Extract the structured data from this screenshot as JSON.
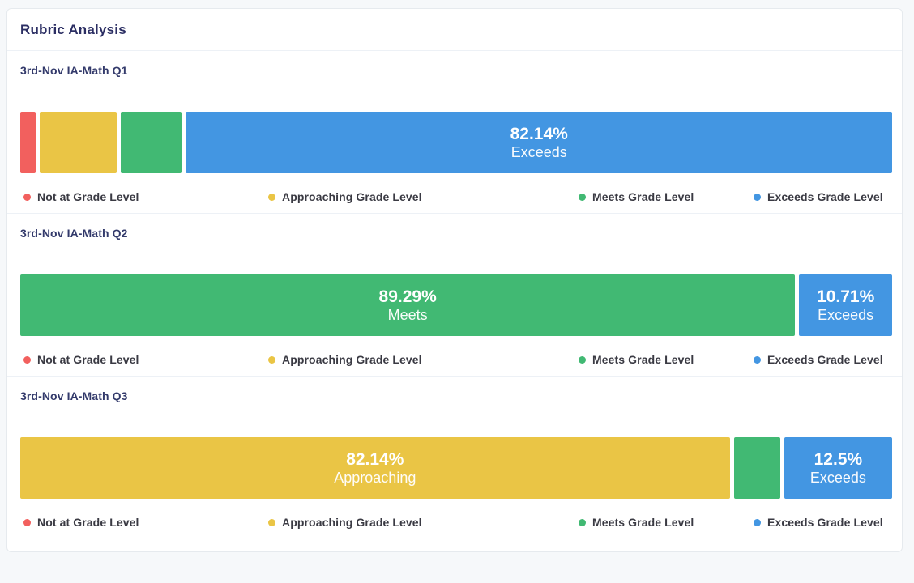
{
  "panel": {
    "title": "Rubric Analysis"
  },
  "colors": {
    "not_at_grade_level": "#F2605E",
    "approaching_grade_level": "#EAC545",
    "meets_grade_level": "#41B973",
    "exceeds_grade_level": "#4396E2",
    "bar_label_text": "#FFFFFF",
    "title_text": "#2B2E63",
    "section_label_text": "#333A6B",
    "legend_text": "#3A3A43",
    "panel_border": "#E6EAEE",
    "divider": "#EDF1F6",
    "page_bg": "#F6F8FA",
    "panel_bg": "#FFFFFF"
  },
  "legend_labels": [
    "Not at Grade Level",
    "Approaching Grade Level",
    "Meets Grade Level",
    "Exceeds Grade Level"
  ],
  "chart_data": [
    {
      "type": "bar",
      "variant": "horizontal-stacked-100percent",
      "title": "3rd-Nov IA-Math Q1",
      "categories": [
        "Not at Grade Level",
        "Approaching Grade Level",
        "Meets Grade Level",
        "Exceeds Grade Level"
      ],
      "values": [
        1.79,
        8.93,
        7.14,
        82.14
      ],
      "colors": [
        "#F2605E",
        "#EAC545",
        "#41B973",
        "#4396E2"
      ],
      "segment_labels": [
        null,
        null,
        null,
        {
          "percent": "82.14%",
          "name": "Exceeds"
        }
      ],
      "legend_position": "bottom",
      "xlim": [
        0,
        100
      ]
    },
    {
      "type": "bar",
      "variant": "horizontal-stacked-100percent",
      "title": "3rd-Nov IA-Math Q2",
      "categories": [
        "Not at Grade Level",
        "Approaching Grade Level",
        "Meets Grade Level",
        "Exceeds Grade Level"
      ],
      "values": [
        0,
        0,
        89.29,
        10.71
      ],
      "colors": [
        "#F2605E",
        "#EAC545",
        "#41B973",
        "#4396E2"
      ],
      "segment_labels": [
        null,
        null,
        {
          "percent": "89.29%",
          "name": "Meets"
        },
        {
          "percent": "10.71%",
          "name": "Exceeds"
        }
      ],
      "legend_position": "bottom",
      "xlim": [
        0,
        100
      ]
    },
    {
      "type": "bar",
      "variant": "horizontal-stacked-100percent",
      "title": "3rd-Nov IA-Math Q3",
      "categories": [
        "Not at Grade Level",
        "Approaching Grade Level",
        "Meets Grade Level",
        "Exceeds Grade Level"
      ],
      "values": [
        0,
        82.14,
        5.36,
        12.5
      ],
      "colors": [
        "#F2605E",
        "#EAC545",
        "#41B973",
        "#4396E2"
      ],
      "segment_labels": [
        null,
        {
          "percent": "82.14%",
          "name": "Approaching"
        },
        null,
        {
          "percent": "12.5%",
          "name": "Exceeds"
        }
      ],
      "legend_position": "bottom",
      "xlim": [
        0,
        100
      ]
    }
  ]
}
